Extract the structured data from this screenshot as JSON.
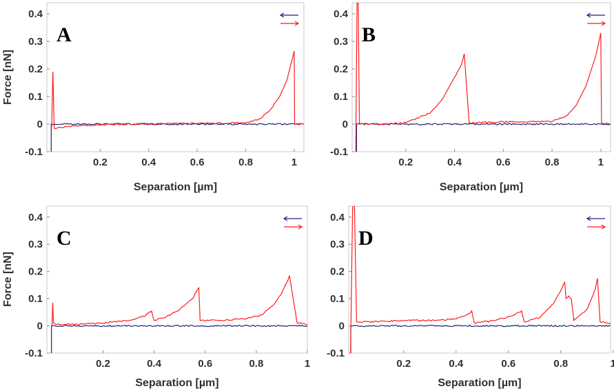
{
  "chart_data": [
    {
      "type": "line",
      "panel": "A",
      "xlabel": "Separation [µm]",
      "ylabel": "Force [nN]",
      "xlim": [
        -0.02,
        1.04
      ],
      "ylim": [
        -0.1,
        0.44
      ],
      "xticks": [
        "0.2",
        "0.4",
        "0.6",
        "0.8",
        "1"
      ],
      "yticks": [
        "-0.1",
        "0",
        "0.1",
        "0.2",
        "0.3",
        "0.4"
      ],
      "legend": "top-right",
      "colors": {
        "approach": "#1a237e",
        "retract": "#ff1a1a"
      },
      "series": [
        {
          "direction": "approach",
          "x": [
            -0.002,
            -0.002,
            0.0,
            0.2,
            0.4,
            0.6,
            0.8,
            1.04
          ],
          "y": [
            -0.1,
            0.0,
            0.0,
            0.0,
            0.0,
            0.0,
            0.0,
            0.0
          ]
        },
        {
          "direction": "retract",
          "x": [
            0.0,
            0.005,
            0.01,
            0.02,
            0.1,
            0.3,
            0.6,
            0.8,
            0.86,
            0.9,
            0.94,
            0.97,
            0.99,
            1.0,
            1.002,
            1.01,
            1.04
          ],
          "y": [
            -0.01,
            0.19,
            -0.015,
            -0.015,
            -0.005,
            0.0,
            0.003,
            0.005,
            0.02,
            0.05,
            0.1,
            0.16,
            0.23,
            0.265,
            0.0,
            0.0,
            0.0
          ]
        }
      ]
    },
    {
      "type": "line",
      "panel": "B",
      "xlabel": "Separation [µm]",
      "ylabel": "",
      "xlim": [
        -0.02,
        1.04
      ],
      "ylim": [
        -0.1,
        0.44
      ],
      "xticks": [
        "0.2",
        "0.4",
        "0.6",
        "0.8",
        "1"
      ],
      "yticks": [
        "-0.1",
        "0",
        "0.1",
        "0.2",
        "0.3",
        "0.4"
      ],
      "legend": "top-right",
      "colors": {
        "approach": "#1a237e",
        "retract": "#ff1a1a"
      },
      "series": [
        {
          "direction": "approach",
          "x": [
            -0.002,
            -0.002,
            0.0,
            0.2,
            0.4,
            0.6,
            0.8,
            1.04
          ],
          "y": [
            -0.1,
            0.0,
            0.0,
            0.0,
            0.0,
            0.0,
            0.0,
            0.0
          ]
        },
        {
          "direction": "retract",
          "x": [
            -0.005,
            0.0,
            0.005,
            0.01,
            0.1,
            0.2,
            0.3,
            0.35,
            0.4,
            0.43,
            0.44,
            0.46,
            0.6,
            0.8,
            0.86,
            0.9,
            0.94,
            0.98,
            1.0,
            1.003,
            1.04
          ],
          "y": [
            -0.1,
            0.44,
            0.44,
            0.0,
            0.0,
            0.005,
            0.04,
            0.09,
            0.17,
            0.22,
            0.255,
            0.005,
            0.008,
            0.01,
            0.03,
            0.07,
            0.14,
            0.25,
            0.33,
            0.005,
            0.0
          ]
        }
      ]
    },
    {
      "type": "line",
      "panel": "C",
      "xlabel": "Separation [µm]",
      "ylabel": "Force [nN]",
      "xlim": [
        -0.02,
        1.0
      ],
      "ylim": [
        -0.1,
        0.44
      ],
      "xticks": [
        "0.2",
        "0.4",
        "0.6",
        "0.8",
        "1"
      ],
      "yticks": [
        "-0.1",
        "0",
        "0.1",
        "0.2",
        "0.3",
        "0.4"
      ],
      "legend": "top-right",
      "colors": {
        "approach": "#1a237e",
        "retract": "#ff1a1a"
      },
      "series": [
        {
          "direction": "approach",
          "x": [
            -0.002,
            -0.002,
            0.0,
            0.2,
            0.4,
            0.6,
            0.8,
            1.0
          ],
          "y": [
            -0.1,
            0.0,
            0.0,
            0.0,
            0.0,
            0.0,
            0.0,
            0.0
          ]
        },
        {
          "direction": "retract",
          "x": [
            0.0,
            0.003,
            0.006,
            0.02,
            0.1,
            0.2,
            0.3,
            0.36,
            0.39,
            0.4,
            0.45,
            0.5,
            0.55,
            0.575,
            0.58,
            0.65,
            0.75,
            0.82,
            0.87,
            0.9,
            0.92,
            0.93,
            0.96,
            1.0
          ],
          "y": [
            0.0,
            0.085,
            0.01,
            0.005,
            0.005,
            0.01,
            0.02,
            0.035,
            0.055,
            0.02,
            0.035,
            0.06,
            0.1,
            0.14,
            0.02,
            0.02,
            0.025,
            0.04,
            0.08,
            0.12,
            0.16,
            0.185,
            0.01,
            0.005
          ]
        }
      ]
    },
    {
      "type": "line",
      "panel": "D",
      "xlabel": "Separation [µm]",
      "ylabel": "",
      "xlim": [
        -0.01,
        0.99
      ],
      "ylim": [
        -0.1,
        0.44
      ],
      "xticks": [
        "0.2",
        "0.4",
        "0.6",
        "0.8",
        "1"
      ],
      "yticks": [
        "-0.1",
        "0",
        "0.1",
        "0.2",
        "0.3",
        "0.4"
      ],
      "legend": "top-right",
      "colors": {
        "approach": "#1a237e",
        "retract": "#ff1a1a"
      },
      "series": [
        {
          "direction": "approach",
          "x": [
            -0.002,
            -0.002,
            0.0,
            0.2,
            0.4,
            0.6,
            0.8,
            0.99
          ],
          "y": [
            -0.1,
            0.0,
            0.0,
            0.0,
            0.0,
            0.0,
            0.0,
            0.0
          ]
        },
        {
          "direction": "retract",
          "x": [
            -0.003,
            0.005,
            0.012,
            0.02,
            0.1,
            0.2,
            0.3,
            0.4,
            0.44,
            0.46,
            0.47,
            0.55,
            0.62,
            0.65,
            0.66,
            0.72,
            0.77,
            0.8,
            0.815,
            0.82,
            0.83,
            0.84,
            0.85,
            0.9,
            0.93,
            0.94,
            0.95,
            0.99
          ],
          "y": [
            -0.1,
            0.44,
            0.44,
            0.015,
            0.015,
            0.02,
            0.02,
            0.025,
            0.04,
            0.055,
            0.01,
            0.02,
            0.04,
            0.055,
            0.015,
            0.03,
            0.08,
            0.13,
            0.16,
            0.1,
            0.11,
            0.1,
            0.02,
            0.06,
            0.13,
            0.175,
            0.015,
            0.01
          ]
        }
      ]
    }
  ]
}
